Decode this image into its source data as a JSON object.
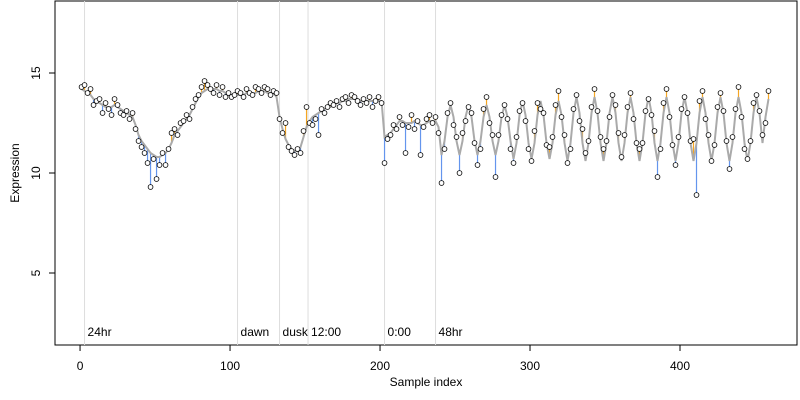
{
  "chart_data": {
    "type": "scatter",
    "x_label": "Sample index",
    "y_label": "Expression",
    "xlim": [
      -16.7,
      478
    ],
    "ylim": [
      1.4,
      18.6
    ],
    "xticks": [
      0,
      100,
      200,
      300,
      400
    ],
    "yticks": [
      5,
      10,
      15
    ],
    "point_color": "#000000",
    "fit_color": "#aaaaaa",
    "above_color": "#f5a623",
    "below_color": "#6495ed",
    "marker_line_color": "#dddddd",
    "annotation_color": "#aaaaaa",
    "annotations": [
      {
        "label": "24hr",
        "x": 3
      },
      {
        "label": "dawn",
        "x": 105
      },
      {
        "label": "dusk",
        "x": 133
      },
      {
        "label": "12:00",
        "x": 152
      },
      {
        "label": "0:00",
        "x": 203
      },
      {
        "label": "48hr",
        "x": 237
      }
    ],
    "annotation_y": 2.0,
    "x": [
      1,
      3,
      5,
      7,
      9,
      11,
      13,
      15,
      17,
      19,
      21,
      23,
      25,
      27,
      29,
      31,
      33,
      35,
      37,
      39,
      41,
      43,
      45,
      47,
      49,
      51,
      53,
      55,
      57,
      59,
      61,
      63,
      65,
      67,
      69,
      71,
      73,
      75,
      77,
      79,
      81,
      83,
      85,
      87,
      89,
      91,
      93,
      95,
      97,
      99,
      101,
      103,
      105,
      107,
      109,
      111,
      113,
      115,
      117,
      119,
      121,
      123,
      125,
      127,
      129,
      131,
      133,
      135,
      137,
      139,
      141,
      143,
      145,
      147,
      149,
      151,
      153,
      155,
      157,
      159,
      161,
      163,
      165,
      167,
      169,
      171,
      173,
      175,
      177,
      179,
      181,
      183,
      185,
      187,
      189,
      191,
      193,
      195,
      197,
      199,
      201,
      203,
      205,
      207,
      209,
      211,
      213,
      215,
      217,
      219,
      221,
      223,
      225,
      227,
      229,
      231,
      233,
      235,
      237,
      239,
      241,
      243,
      245,
      247,
      249,
      251,
      253,
      255,
      257,
      259,
      261,
      263,
      265,
      267,
      269,
      271,
      273,
      275,
      277,
      279,
      281,
      283,
      285,
      287,
      289,
      291,
      293,
      295,
      297,
      299,
      301,
      303,
      305,
      307,
      309,
      311,
      313,
      315,
      317,
      319,
      321,
      323,
      325,
      327,
      329,
      331,
      333,
      335,
      337,
      339,
      341,
      343,
      345,
      347,
      349,
      351,
      353,
      355,
      357,
      359,
      361,
      363,
      365,
      367,
      369,
      371,
      373,
      375,
      377,
      379,
      381,
      383,
      385,
      387,
      389,
      391,
      393,
      395,
      397,
      399,
      401,
      403,
      405,
      407,
      409,
      411,
      413,
      415,
      417,
      419,
      421,
      423,
      425,
      427,
      429,
      431,
      433,
      435,
      437,
      439,
      441,
      443,
      445,
      447,
      449,
      451,
      453,
      455,
      457,
      459
    ],
    "values": [
      14.3,
      14.4,
      14.0,
      14.2,
      13.4,
      13.6,
      13.7,
      13.0,
      13.5,
      13.2,
      12.9,
      13.7,
      13.4,
      13.0,
      12.9,
      13.1,
      12.7,
      13.0,
      12.2,
      11.6,
      11.3,
      11.0,
      10.5,
      9.3,
      10.7,
      9.7,
      10.4,
      11.0,
      10.4,
      11.2,
      12.0,
      12.2,
      11.9,
      12.5,
      12.6,
      12.9,
      12.7,
      13.3,
      13.7,
      13.9,
      14.3,
      14.6,
      14.4,
      14.2,
      14.0,
      14.4,
      13.9,
      14.3,
      13.8,
      14.0,
      13.8,
      13.9,
      14.1,
      14.0,
      13.8,
      14.2,
      14.0,
      13.9,
      14.3,
      14.2,
      14.0,
      14.3,
      14.2,
      13.9,
      14.1,
      14.0,
      12.7,
      12.0,
      12.5,
      11.3,
      11.1,
      10.9,
      11.2,
      11.0,
      12.1,
      13.3,
      12.5,
      12.4,
      12.7,
      11.9,
      13.2,
      13.0,
      13.3,
      13.5,
      13.4,
      13.6,
      13.3,
      13.7,
      13.8,
      13.5,
      13.9,
      13.8,
      13.6,
      13.4,
      13.7,
      13.5,
      13.8,
      13.3,
      13.6,
      13.8,
      13.5,
      10.5,
      11.7,
      11.9,
      12.4,
      12.2,
      12.8,
      12.4,
      11.0,
      12.3,
      12.9,
      12.2,
      12.6,
      10.9,
      12.3,
      12.7,
      12.9,
      12.5,
      12.8,
      12.0,
      9.5,
      11.2,
      13.0,
      13.5,
      12.4,
      11.8,
      10.0,
      12.0,
      12.6,
      13.3,
      13.0,
      11.5,
      10.4,
      11.2,
      13.2,
      13.8,
      12.5,
      11.9,
      9.8,
      11.9,
      12.9,
      13.4,
      12.7,
      11.2,
      10.5,
      11.8,
      13.1,
      13.5,
      12.6,
      11.2,
      10.6,
      12.1,
      13.5,
      13.2,
      13.0,
      11.4,
      11.3,
      11.8,
      13.4,
      14.1,
      12.8,
      11.9,
      10.5,
      11.2,
      13.2,
      13.9,
      12.6,
      12.2,
      11.0,
      11.6,
      13.3,
      14.2,
      13.1,
      11.8,
      11.2,
      11.6,
      12.8,
      13.9,
      13.4,
      12.0,
      10.8,
      11.9,
      13.3,
      14.0,
      12.7,
      11.5,
      11.2,
      11.5,
      13.1,
      13.7,
      12.9,
      12.1,
      9.8,
      11.2,
      13.5,
      14.2,
      12.8,
      11.4,
      10.4,
      11.8,
      13.2,
      13.8,
      13.0,
      11.6,
      11.7,
      8.9,
      13.6,
      14.1,
      12.7,
      11.9,
      10.6,
      11.4,
      13.3,
      14.0,
      13.1,
      11.6,
      10.2,
      11.8,
      13.2,
      14.3,
      12.8,
      11.2,
      10.7,
      11.6,
      13.5,
      13.9,
      13.1,
      11.9,
      12.5,
      14.1
    ],
    "fit_values": [
      14.2,
      14.1,
      14.0,
      13.9,
      13.7,
      13.6,
      13.5,
      13.4,
      13.3,
      13.3,
      13.3,
      13.4,
      13.3,
      13.2,
      13.1,
      13.0,
      12.9,
      12.8,
      12.4,
      11.9,
      11.6,
      11.4,
      11.2,
      11.0,
      10.9,
      10.8,
      10.8,
      10.9,
      11.0,
      11.2,
      11.5,
      11.9,
      12.1,
      12.3,
      12.5,
      12.7,
      12.9,
      13.2,
      13.5,
      13.8,
      14.0,
      14.1,
      14.2,
      14.2,
      14.2,
      14.2,
      14.1,
      14.1,
      14.0,
      14.0,
      13.9,
      13.9,
      13.9,
      13.9,
      13.9,
      14.0,
      14.0,
      14.0,
      14.0,
      14.1,
      14.1,
      14.1,
      14.0,
      14.0,
      14.0,
      13.8,
      12.8,
      12.2,
      11.7,
      11.4,
      11.2,
      11.1,
      11.1,
      11.3,
      11.8,
      12.3,
      12.6,
      12.8,
      12.9,
      13.0,
      13.1,
      13.2,
      13.3,
      13.3,
      13.4,
      13.5,
      13.5,
      13.6,
      13.6,
      13.7,
      13.7,
      13.7,
      13.7,
      13.6,
      13.6,
      13.6,
      13.6,
      13.6,
      13.6,
      13.6,
      13.6,
      11.8,
      11.9,
      12.0,
      12.2,
      12.4,
      12.6,
      12.6,
      12.5,
      12.5,
      12.5,
      12.6,
      12.5,
      12.4,
      12.4,
      12.5,
      12.6,
      12.6,
      12.6,
      12.3,
      10.9,
      11.6,
      12.8,
      13.4,
      12.8,
      11.6,
      10.9,
      11.6,
      12.8,
      13.4,
      12.8,
      11.6,
      10.9,
      11.6,
      12.8,
      13.4,
      12.8,
      11.6,
      10.9,
      11.6,
      12.8,
      13.4,
      12.8,
      11.6,
      10.7,
      11.5,
      12.9,
      13.6,
      12.9,
      11.5,
      10.7,
      11.5,
      12.9,
      13.6,
      12.9,
      11.5,
      10.7,
      11.5,
      12.9,
      13.6,
      12.9,
      11.5,
      10.6,
      11.5,
      13.0,
      13.8,
      13.0,
      11.5,
      10.6,
      11.5,
      13.0,
      13.8,
      13.0,
      11.5,
      10.6,
      11.5,
      13.0,
      13.8,
      13.0,
      11.5,
      10.6,
      11.5,
      13.0,
      13.8,
      13.0,
      11.5,
      10.6,
      11.5,
      13.0,
      13.8,
      13.0,
      11.5,
      10.6,
      11.5,
      13.0,
      13.8,
      13.0,
      11.5,
      10.6,
      11.5,
      13.0,
      13.8,
      13.0,
      11.5,
      10.6,
      11.5,
      13.0,
      13.8,
      13.0,
      11.5,
      10.6,
      11.5,
      13.0,
      13.8,
      13.0,
      11.5,
      10.6,
      11.5,
      13.0,
      13.8,
      13.0,
      11.5,
      10.6,
      11.5,
      13.0,
      13.8,
      13.0,
      11.5,
      12.8,
      13.7
    ]
  }
}
